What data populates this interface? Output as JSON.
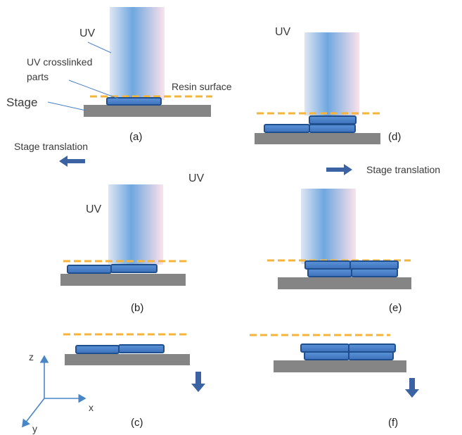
{
  "labels": {
    "uv": "UV",
    "uv_crosslinked_line1": "UV crosslinked",
    "uv_crosslinked_line2": "parts",
    "resin_surface": "Resin surface",
    "stage": "Stage",
    "stage_translation": "Stage translation"
  },
  "panels": {
    "a": "(a)",
    "b": "(b)",
    "c": "(c)",
    "d": "(d)",
    "e": "(e)",
    "f": "(f)"
  },
  "axes": {
    "x": "x",
    "y": "y",
    "z": "z"
  },
  "colors": {
    "resin_line": "#f5b43a",
    "stage": "#858585",
    "part_fill": "#4a80c8",
    "part_stroke": "#1f4f8f",
    "arrow": "#3b62a3",
    "axes": "#4a86c6"
  }
}
